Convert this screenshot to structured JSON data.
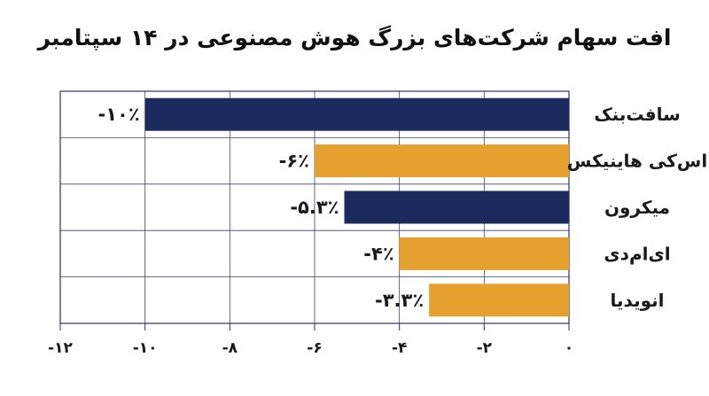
{
  "chart_data": {
    "type": "bar",
    "orientation": "horizontal",
    "title": "افت سهام شرکت‌های بزرگ هوش مصنوعی در ۱۴ سپتامبر",
    "categories": [
      "سافت‌بنک",
      "اس‌کی هاینیکس",
      "میکرون",
      "ای‌ام‌دی",
      "انویدیا"
    ],
    "values": [
      -10,
      -6,
      -5.3,
      -4,
      -3.3
    ],
    "data_labels": [
      "-۱۰٪",
      "-۶٪",
      "-۵.۳٪",
      "-۴٪",
      "-۳.۳٪"
    ],
    "bar_colors": [
      "#1b2b5e",
      "#e5a030",
      "#1b2b5e",
      "#e5a030",
      "#e5a030"
    ],
    "xlim": [
      -12,
      0
    ],
    "xticks": [
      -12,
      -10,
      -8,
      -6,
      -4,
      -2,
      0
    ],
    "xtick_labels": [
      "-۱۲",
      "-۱۰",
      "-۸",
      "-۶",
      "-۴",
      "-۲",
      "۰"
    ],
    "grid": true,
    "category_axis": "right"
  }
}
